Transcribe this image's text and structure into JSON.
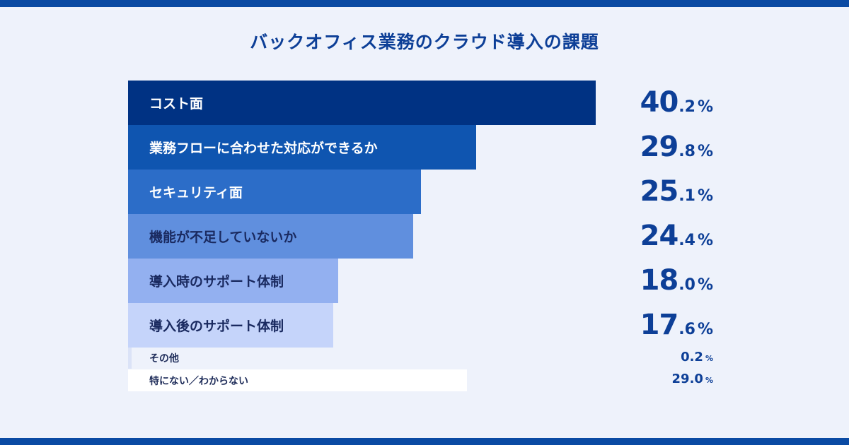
{
  "chart_data": {
    "type": "bar",
    "orientation": "horizontal",
    "title": "バックオフィス業務のクラウド導入の課題",
    "unit": "%",
    "categories": [
      "コスト面",
      "業務フローに合わせた対応ができるか",
      "セキュリティ面",
      "機能が不足していないか",
      "導入時のサポート体制",
      "導入後のサポート体制",
      "その他",
      "特にない／わからない"
    ],
    "values": [
      40.2,
      29.8,
      25.1,
      24.4,
      18.0,
      17.6,
      0.2,
      29.0
    ],
    "value_labels": [
      "40.2",
      "29.8",
      "25.1",
      "24.4",
      "18.0",
      "17.6",
      "0.2",
      "29.0"
    ],
    "colors": [
      "#003283",
      "#0f55b0",
      "#2c6dc8",
      "#608fde",
      "#93b0f0",
      "#c5d4fa",
      "#dbe3f7",
      "#ffffff"
    ],
    "label_colors": [
      "#ffffff",
      "#ffffff",
      "#ffffff",
      "#1a2a60",
      "#1a2a60",
      "#1a2a60",
      "#1f2d5a",
      "#1f2d5a"
    ]
  }
}
